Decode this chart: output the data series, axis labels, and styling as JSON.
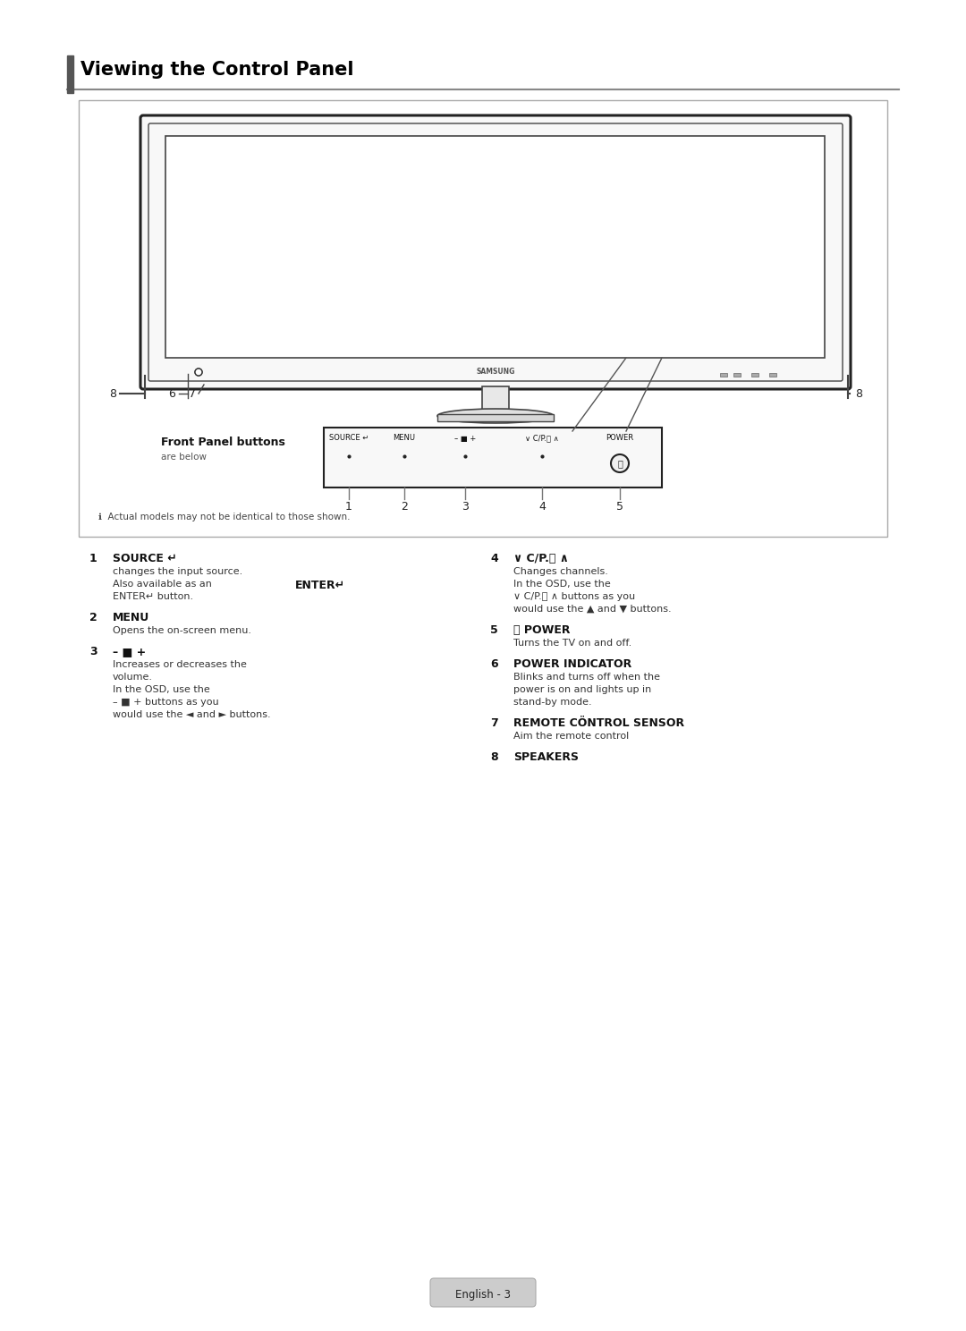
{
  "title": "Viewing the Control Panel",
  "page_label": "English - 3",
  "bg_color": "#ffffff",
  "section_bar_color": "#555555",
  "note_text": "Actual models may not be identical to those shown.",
  "front_panel_label": "Front Panel buttons",
  "front_panel_sub": "are below",
  "btn_labels": [
    "SOURCE ↵",
    "MENU",
    "– ■ +",
    "∨ C/P.⌛ ∧",
    "POWER"
  ],
  "btn_nums": [
    "1",
    "2",
    "3",
    "4",
    "5"
  ],
  "items_left": [
    {
      "num": "1",
      "label": "SOURCE ↵",
      "lines": [
        "changes the input source.",
        "Also available as an",
        "ENTER↵ button."
      ],
      "enter_on_line": 2
    },
    {
      "num": "2",
      "label": "MENU",
      "lines": [
        "Opens the on-screen menu."
      ]
    },
    {
      "num": "3",
      "label": "– ■ +",
      "lines": [
        "Increases or decreases the",
        "volume.",
        "In the OSD, use the",
        "– ■ + buttons as you",
        "would use the ◄ and ► buttons."
      ]
    }
  ],
  "items_right": [
    {
      "num": "4",
      "label": "∨ C/P.⌛ ∧",
      "lines": [
        "Changes channels.",
        "In the OSD, use the",
        "∨ C/P.⌛ ∧ buttons as you",
        "would use the ▲ and ▼ buttons."
      ]
    },
    {
      "num": "5",
      "label": "⏻ POWER",
      "lines": [
        "Turns the TV on and off."
      ]
    },
    {
      "num": "6",
      "label": "POWER INDICATOR",
      "lines": [
        "Blinks and turns off when the",
        "power is on and lights up in",
        "stand-by mode."
      ]
    },
    {
      "num": "7",
      "label": "REMOTE CÖNTROL SENSOR",
      "lines": [
        "Aim the remote control"
      ]
    },
    {
      "num": "8",
      "label": "SPEAKERS",
      "lines": []
    }
  ]
}
